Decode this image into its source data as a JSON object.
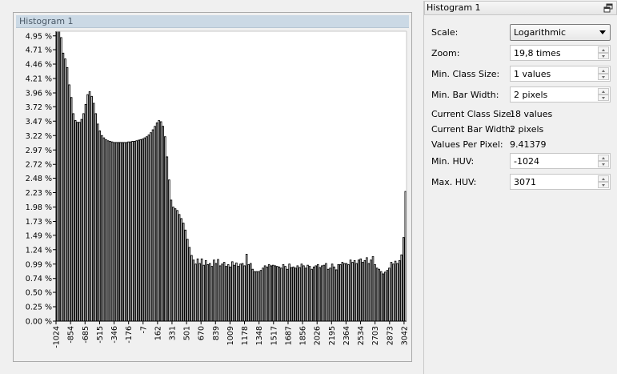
{
  "histogram": {
    "title": "Histogram 1"
  },
  "props": {
    "title": "Histogram 1",
    "scale": {
      "label": "Scale:",
      "value": "Logarithmic"
    },
    "zoom": {
      "label": "Zoom:",
      "value": "19,8 times"
    },
    "min_class_size": {
      "label": "Min. Class Size:",
      "value": "1 values"
    },
    "min_bar_width": {
      "label": "Min. Bar Width:",
      "value": "2 pixels"
    },
    "current_class_size": {
      "label": "Current Class Size:",
      "value": "18 values"
    },
    "current_bar_width": {
      "label": "Current Bar Width:",
      "value": "2 pixels"
    },
    "values_per_pixel": {
      "label": "Values Per Pixel:",
      "value": "9.41379"
    },
    "min_huv": {
      "label": "Min. HUV:",
      "value": "-1024"
    },
    "max_huv": {
      "label": "Max. HUV:",
      "value": "3071"
    }
  },
  "chart_data": {
    "type": "bar",
    "title": "Histogram 1",
    "xlabel": "",
    "ylabel": "",
    "ylim": [
      0,
      5.03
    ],
    "xlim": [
      -1024,
      3071
    ],
    "y_ticks": [
      "0.00 %",
      "0.25 %",
      "0.50 %",
      "0.74 %",
      "0.99 %",
      "1.24 %",
      "1.49 %",
      "1.73 %",
      "1.98 %",
      "2.23 %",
      "2.48 %",
      "2.72 %",
      "2.97 %",
      "3.22 %",
      "3.47 %",
      "3.72 %",
      "3.96 %",
      "4.21 %",
      "4.46 %",
      "4.71 %",
      "4.95 %"
    ],
    "y_tick_values": [
      0.0,
      0.25,
      0.5,
      0.74,
      0.99,
      1.24,
      1.49,
      1.73,
      1.98,
      2.23,
      2.48,
      2.72,
      2.97,
      3.22,
      3.47,
      3.72,
      3.96,
      4.21,
      4.46,
      4.71,
      4.95
    ],
    "x_ticks": [
      "-1024",
      "-854",
      "-685",
      "-515",
      "-346",
      "-176",
      "-7",
      "162",
      "331",
      "501",
      "670",
      "839",
      "1009",
      "1178",
      "1348",
      "1517",
      "1687",
      "1856",
      "2026",
      "2195",
      "2364",
      "2534",
      "2703",
      "2873",
      "3042"
    ],
    "x_tick_values": [
      -1024,
      -854,
      -685,
      -515,
      -346,
      -176,
      -7,
      162,
      331,
      501,
      670,
      839,
      1009,
      1178,
      1348,
      1517,
      1687,
      1856,
      2026,
      2195,
      2364,
      2534,
      2703,
      2873,
      3042
    ],
    "bar_x_start": -1024,
    "bar_class_size": 18,
    "values": [
      5.03,
      5.03,
      4.92,
      4.65,
      4.55,
      4.4,
      4.1,
      3.88,
      3.6,
      3.48,
      3.45,
      3.45,
      3.5,
      3.6,
      3.76,
      3.93,
      3.98,
      3.9,
      3.78,
      3.6,
      3.42,
      3.3,
      3.22,
      3.18,
      3.15,
      3.13,
      3.12,
      3.11,
      3.1,
      3.1,
      3.1,
      3.1,
      3.1,
      3.1,
      3.1,
      3.11,
      3.11,
      3.12,
      3.12,
      3.13,
      3.14,
      3.15,
      3.16,
      3.18,
      3.2,
      3.23,
      3.27,
      3.32,
      3.38,
      3.44,
      3.48,
      3.46,
      3.38,
      3.2,
      2.85,
      2.45,
      2.1,
      1.98,
      1.95,
      1.92,
      1.85,
      1.78,
      1.7,
      1.58,
      1.42,
      1.28,
      1.14,
      1.06,
      0.99,
      1.08,
      1.0,
      1.08,
      0.97,
      1.05,
      0.98,
      1.0,
      0.95,
      1.06,
      1.0,
      1.07,
      0.96,
      0.99,
      1.02,
      0.95,
      0.98,
      0.94,
      1.03,
      0.97,
      1.01,
      0.95,
      0.99,
      1.0,
      0.96,
      1.16,
      0.98,
      1.0,
      0.9,
      0.86,
      0.86,
      0.86,
      0.88,
      0.92,
      0.96,
      0.94,
      0.98,
      0.96,
      0.97,
      0.96,
      0.95,
      0.94,
      0.92,
      0.98,
      0.95,
      0.9,
      0.99,
      0.93,
      0.94,
      0.92,
      0.96,
      0.93,
      0.99,
      0.96,
      0.92,
      0.97,
      0.95,
      0.9,
      0.94,
      0.96,
      0.98,
      0.93,
      0.96,
      0.97,
      1.0,
      0.9,
      0.92,
      0.99,
      0.94,
      0.89,
      0.98,
      0.98,
      1.02,
      1.0,
      1.0,
      0.98,
      1.06,
      1.02,
      1.05,
      1.0,
      1.06,
      1.08,
      1.02,
      1.05,
      1.1,
      1.0,
      1.06,
      1.12,
      0.98,
      0.92,
      0.9,
      0.86,
      0.82,
      0.85,
      0.88,
      0.92,
      1.02,
      0.99,
      1.04,
      1.0,
      1.05,
      1.15,
      1.45,
      2.25
    ]
  }
}
